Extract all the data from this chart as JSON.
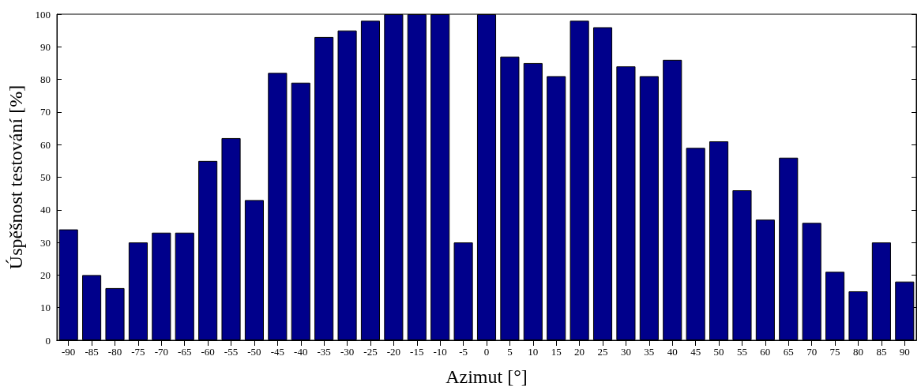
{
  "chart_data": {
    "type": "bar",
    "xlabel": "Azimut [°]",
    "ylabel": "Úspěšnost testování [%]",
    "categories": [
      "-90",
      "-85",
      "-80",
      "-75",
      "-70",
      "-65",
      "-60",
      "-55",
      "-50",
      "-45",
      "-40",
      "-35",
      "-30",
      "-25",
      "-20",
      "-15",
      "-10",
      "-5",
      "0",
      "5",
      "10",
      "15",
      "20",
      "25",
      "30",
      "35",
      "40",
      "45",
      "50",
      "55",
      "60",
      "65",
      "70",
      "75",
      "80",
      "85",
      "90"
    ],
    "values": [
      34,
      20,
      16,
      30,
      33,
      33,
      55,
      62,
      43,
      82,
      79,
      93,
      95,
      98,
      100,
      100,
      100,
      30,
      100,
      87,
      85,
      81,
      98,
      96,
      84,
      81,
      86,
      59,
      61,
      46,
      37,
      56,
      36,
      21,
      15,
      30,
      18
    ],
    "color": "#00008b",
    "ylim": [
      0,
      100
    ],
    "yticks": [
      0,
      10,
      20,
      30,
      40,
      50,
      60,
      70,
      80,
      90,
      100
    ],
    "grid": false
  }
}
